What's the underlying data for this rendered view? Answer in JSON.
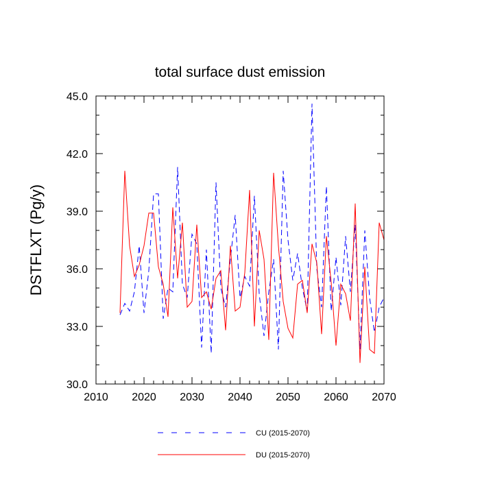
{
  "chart_data": {
    "type": "line",
    "title": "total surface dust emission",
    "xlabel": "",
    "ylabel": "DSTFLXT  (Pg/y)",
    "xlim": [
      2010,
      2070
    ],
    "ylim": [
      30.0,
      45.0
    ],
    "x_ticks": [
      "2010",
      "2020",
      "2030",
      "2040",
      "2050",
      "2060",
      "2070"
    ],
    "y_ticks": [
      "30.0",
      "33.0",
      "36.0",
      "39.0",
      "42.0",
      "45.0"
    ],
    "x": [
      2015,
      2016,
      2017,
      2018,
      2019,
      2020,
      2021,
      2022,
      2023,
      2024,
      2025,
      2026,
      2027,
      2028,
      2029,
      2030,
      2031,
      2032,
      2033,
      2034,
      2035,
      2036,
      2037,
      2038,
      2039,
      2040,
      2041,
      2042,
      2043,
      2044,
      2045,
      2046,
      2047,
      2048,
      2049,
      2050,
      2051,
      2052,
      2053,
      2054,
      2055,
      2056,
      2057,
      2058,
      2059,
      2060,
      2061,
      2062,
      2063,
      2064,
      2065,
      2066,
      2067,
      2068,
      2069,
      2070
    ],
    "series": [
      {
        "name": "CU (2015-2070)",
        "color": "#0000ff",
        "style": "dashed",
        "values": [
          33.6,
          34.2,
          33.8,
          34.8,
          37.2,
          33.7,
          35.9,
          39.9,
          39.9,
          33.4,
          35.0,
          34.8,
          41.3,
          35.2,
          34.5,
          37.8,
          37.3,
          31.9,
          37.0,
          31.6,
          40.5,
          35.0,
          34.0,
          36.5,
          38.8,
          34.5,
          35.6,
          35.1,
          39.8,
          34.7,
          32.5,
          34.8,
          36.5,
          31.8,
          41.1,
          37.5,
          35.4,
          36.8,
          35.0,
          33.8,
          44.6,
          36.0,
          34.0,
          40.3,
          33.8,
          36.6,
          34.1,
          37.7,
          34.8,
          38.3,
          31.8,
          38.0,
          34.5,
          32.7,
          34.0,
          34.5
        ]
      },
      {
        "name": "DU (2015-2070)",
        "color": "#ff0000",
        "style": "solid",
        "values": [
          33.7,
          41.1,
          37.2,
          35.6,
          36.2,
          37.2,
          38.9,
          38.9,
          36.1,
          35.2,
          33.5,
          39.2,
          35.5,
          38.4,
          34.0,
          34.3,
          38.3,
          34.5,
          34.8,
          33.9,
          35.5,
          35.9,
          32.8,
          37.2,
          33.8,
          34.0,
          35.8,
          40.1,
          33.0,
          38.0,
          36.5,
          32.3,
          41.0,
          37.2,
          34.3,
          32.9,
          32.4,
          35.2,
          35.4,
          33.7,
          37.3,
          36.3,
          32.6,
          37.7,
          35.3,
          32.0,
          35.2,
          34.7,
          33.3,
          39.4,
          31.1,
          36.1,
          31.8,
          31.6,
          38.4,
          37.5
        ]
      }
    ],
    "legend_position": "bottom"
  }
}
